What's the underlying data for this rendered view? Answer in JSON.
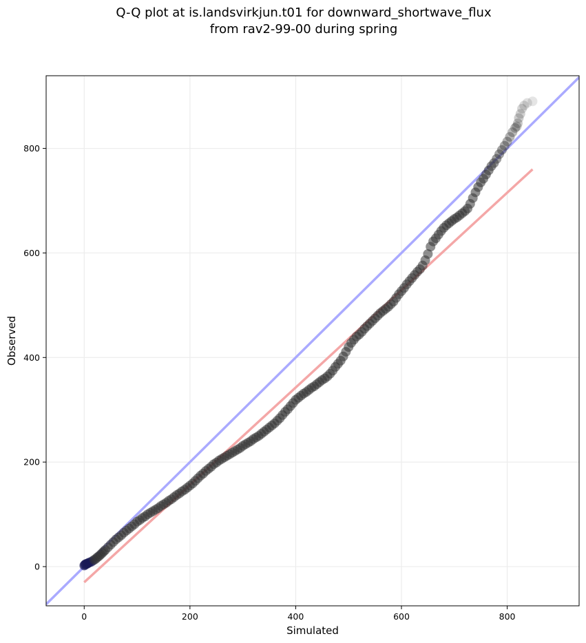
{
  "chart_data": {
    "type": "scatter",
    "title_line1": "Q-Q plot at is.landsvirkjun.t01 for downward_shortwave_flux",
    "title_line2": "from rav2-99-00 during spring",
    "xlabel": "Simulated",
    "ylabel": "Observed",
    "xlim": [
      -72,
      936
    ],
    "ylim": [
      -75,
      939
    ],
    "x_ticks": [
      0,
      200,
      400,
      600,
      800
    ],
    "y_ticks": [
      0,
      200,
      400,
      600,
      800
    ],
    "grid": true,
    "reference_line": {
      "name": "1:1",
      "color": "#aaaaff",
      "x": [
        -72,
        936
      ],
      "y": [
        -72,
        936
      ]
    },
    "fit_line": {
      "color": "#f4a7a7",
      "x": [
        0,
        848
      ],
      "y": [
        -30,
        760
      ]
    },
    "quantile_points": {
      "x": [
        0,
        1,
        2,
        3,
        5,
        6,
        8,
        10,
        13,
        16,
        19,
        22,
        25,
        28,
        31,
        34,
        37,
        40,
        45,
        50,
        55,
        60,
        65,
        70,
        75,
        80,
        85,
        90,
        95,
        100,
        105,
        110,
        115,
        120,
        125,
        130,
        135,
        140,
        145,
        150,
        155,
        160,
        165,
        170,
        175,
        180,
        185,
        190,
        195,
        200,
        205,
        210,
        215,
        220,
        225,
        230,
        235,
        240,
        245,
        250,
        255,
        260,
        265,
        270,
        275,
        280,
        285,
        290,
        295,
        300,
        305,
        310,
        315,
        320,
        325,
        330,
        335,
        340,
        345,
        350,
        355,
        360,
        365,
        370,
        375,
        380,
        385,
        390,
        395,
        400,
        405,
        410,
        415,
        420,
        425,
        430,
        435,
        440,
        445,
        450,
        455,
        460,
        465,
        470,
        475,
        480,
        485,
        490,
        495,
        500,
        505,
        510,
        515,
        520,
        525,
        530,
        535,
        540,
        545,
        550,
        555,
        560,
        565,
        570,
        575,
        580,
        585,
        590,
        595,
        600,
        605,
        610,
        615,
        620,
        625,
        630,
        635,
        640,
        645,
        650,
        655,
        660,
        665,
        670,
        675,
        680,
        685,
        690,
        695,
        700,
        705,
        710,
        715,
        720,
        725,
        730,
        735,
        740,
        745,
        750,
        755,
        760,
        765,
        770,
        775,
        780,
        785,
        790,
        795,
        800,
        805,
        810,
        815,
        818,
        820,
        822,
        825,
        828,
        832,
        838,
        848
      ],
      "y": [
        2,
        3,
        4,
        5,
        5,
        6,
        7,
        8,
        9,
        11,
        13,
        15,
        18,
        20,
        23,
        26,
        29,
        32,
        37,
        42,
        47,
        52,
        56,
        60,
        65,
        69,
        73,
        77,
        81,
        86,
        89,
        93,
        96,
        100,
        103,
        106,
        109,
        112,
        116,
        119,
        122,
        126,
        129,
        133,
        137,
        140,
        144,
        147,
        151,
        155,
        159,
        164,
        169,
        174,
        178,
        183,
        187,
        191,
        196,
        199,
        203,
        206,
        209,
        212,
        215,
        218,
        221,
        224,
        227,
        231,
        234,
        237,
        240,
        244,
        247,
        250,
        254,
        258,
        262,
        266,
        270,
        274,
        279,
        284,
        290,
        296,
        301,
        307,
        313,
        319,
        323,
        327,
        331,
        334,
        338,
        342,
        345,
        349,
        353,
        357,
        360,
        364,
        369,
        375,
        382,
        388,
        394,
        402,
        411,
        420,
        428,
        434,
        440,
        444,
        449,
        455,
        460,
        465,
        470,
        475,
        480,
        485,
        489,
        493,
        497,
        502,
        507,
        514,
        521,
        527,
        533,
        540,
        546,
        552,
        558,
        564,
        569,
        576,
        586,
        598,
        612,
        622,
        628,
        635,
        642,
        648,
        653,
        657,
        661,
        665,
        668,
        672,
        676,
        680,
        685,
        694,
        705,
        716,
        726,
        735,
        742,
        750,
        758,
        766,
        772,
        780,
        789,
        797,
        805,
        813,
        822,
        831,
        839,
        842,
        848,
        858,
        866,
        876,
        882,
        887,
        890
      ]
    }
  }
}
